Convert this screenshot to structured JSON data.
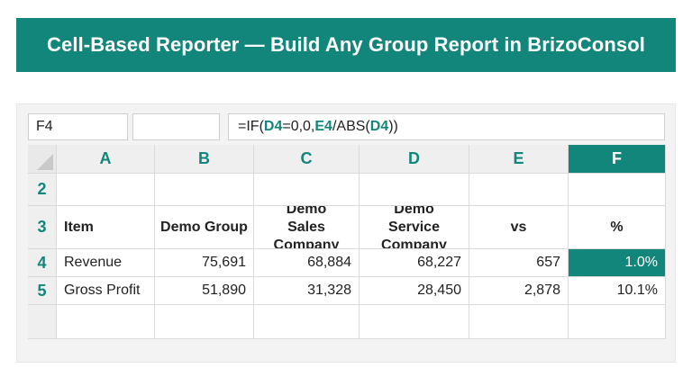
{
  "banner": {
    "title": "Cell-Based Reporter — Build Any Group Report in BrizoConsol"
  },
  "formula_bar": {
    "name_box": "F4",
    "formula_parts": [
      "=IF(",
      "D4",
      "=0,0,",
      "E4",
      "/ABS(",
      "D4",
      "))"
    ]
  },
  "columns": [
    "A",
    "B",
    "C",
    "D",
    "E",
    "F"
  ],
  "selected_column": "F",
  "rows": [
    {
      "num": "2",
      "cells": [
        "",
        "",
        "",
        "",
        "",
        ""
      ]
    },
    {
      "num": "3",
      "cells": [
        "Item",
        "Demo Group",
        "Demo Sales Company",
        "Demo Service Company",
        "vs",
        "%"
      ]
    },
    {
      "num": "4",
      "cells": [
        "Revenue",
        "75,691",
        "68,884",
        "68,227",
        "657",
        "1.0%"
      ]
    },
    {
      "num": "5",
      "cells": [
        "Gross Profit",
        "51,890",
        "31,328",
        "28,450",
        "2,878",
        "10.1%"
      ]
    },
    {
      "num": "",
      "cells": [
        "",
        "",
        "",
        "",
        "",
        ""
      ]
    }
  ],
  "colors": {
    "accent": "#12867a"
  }
}
